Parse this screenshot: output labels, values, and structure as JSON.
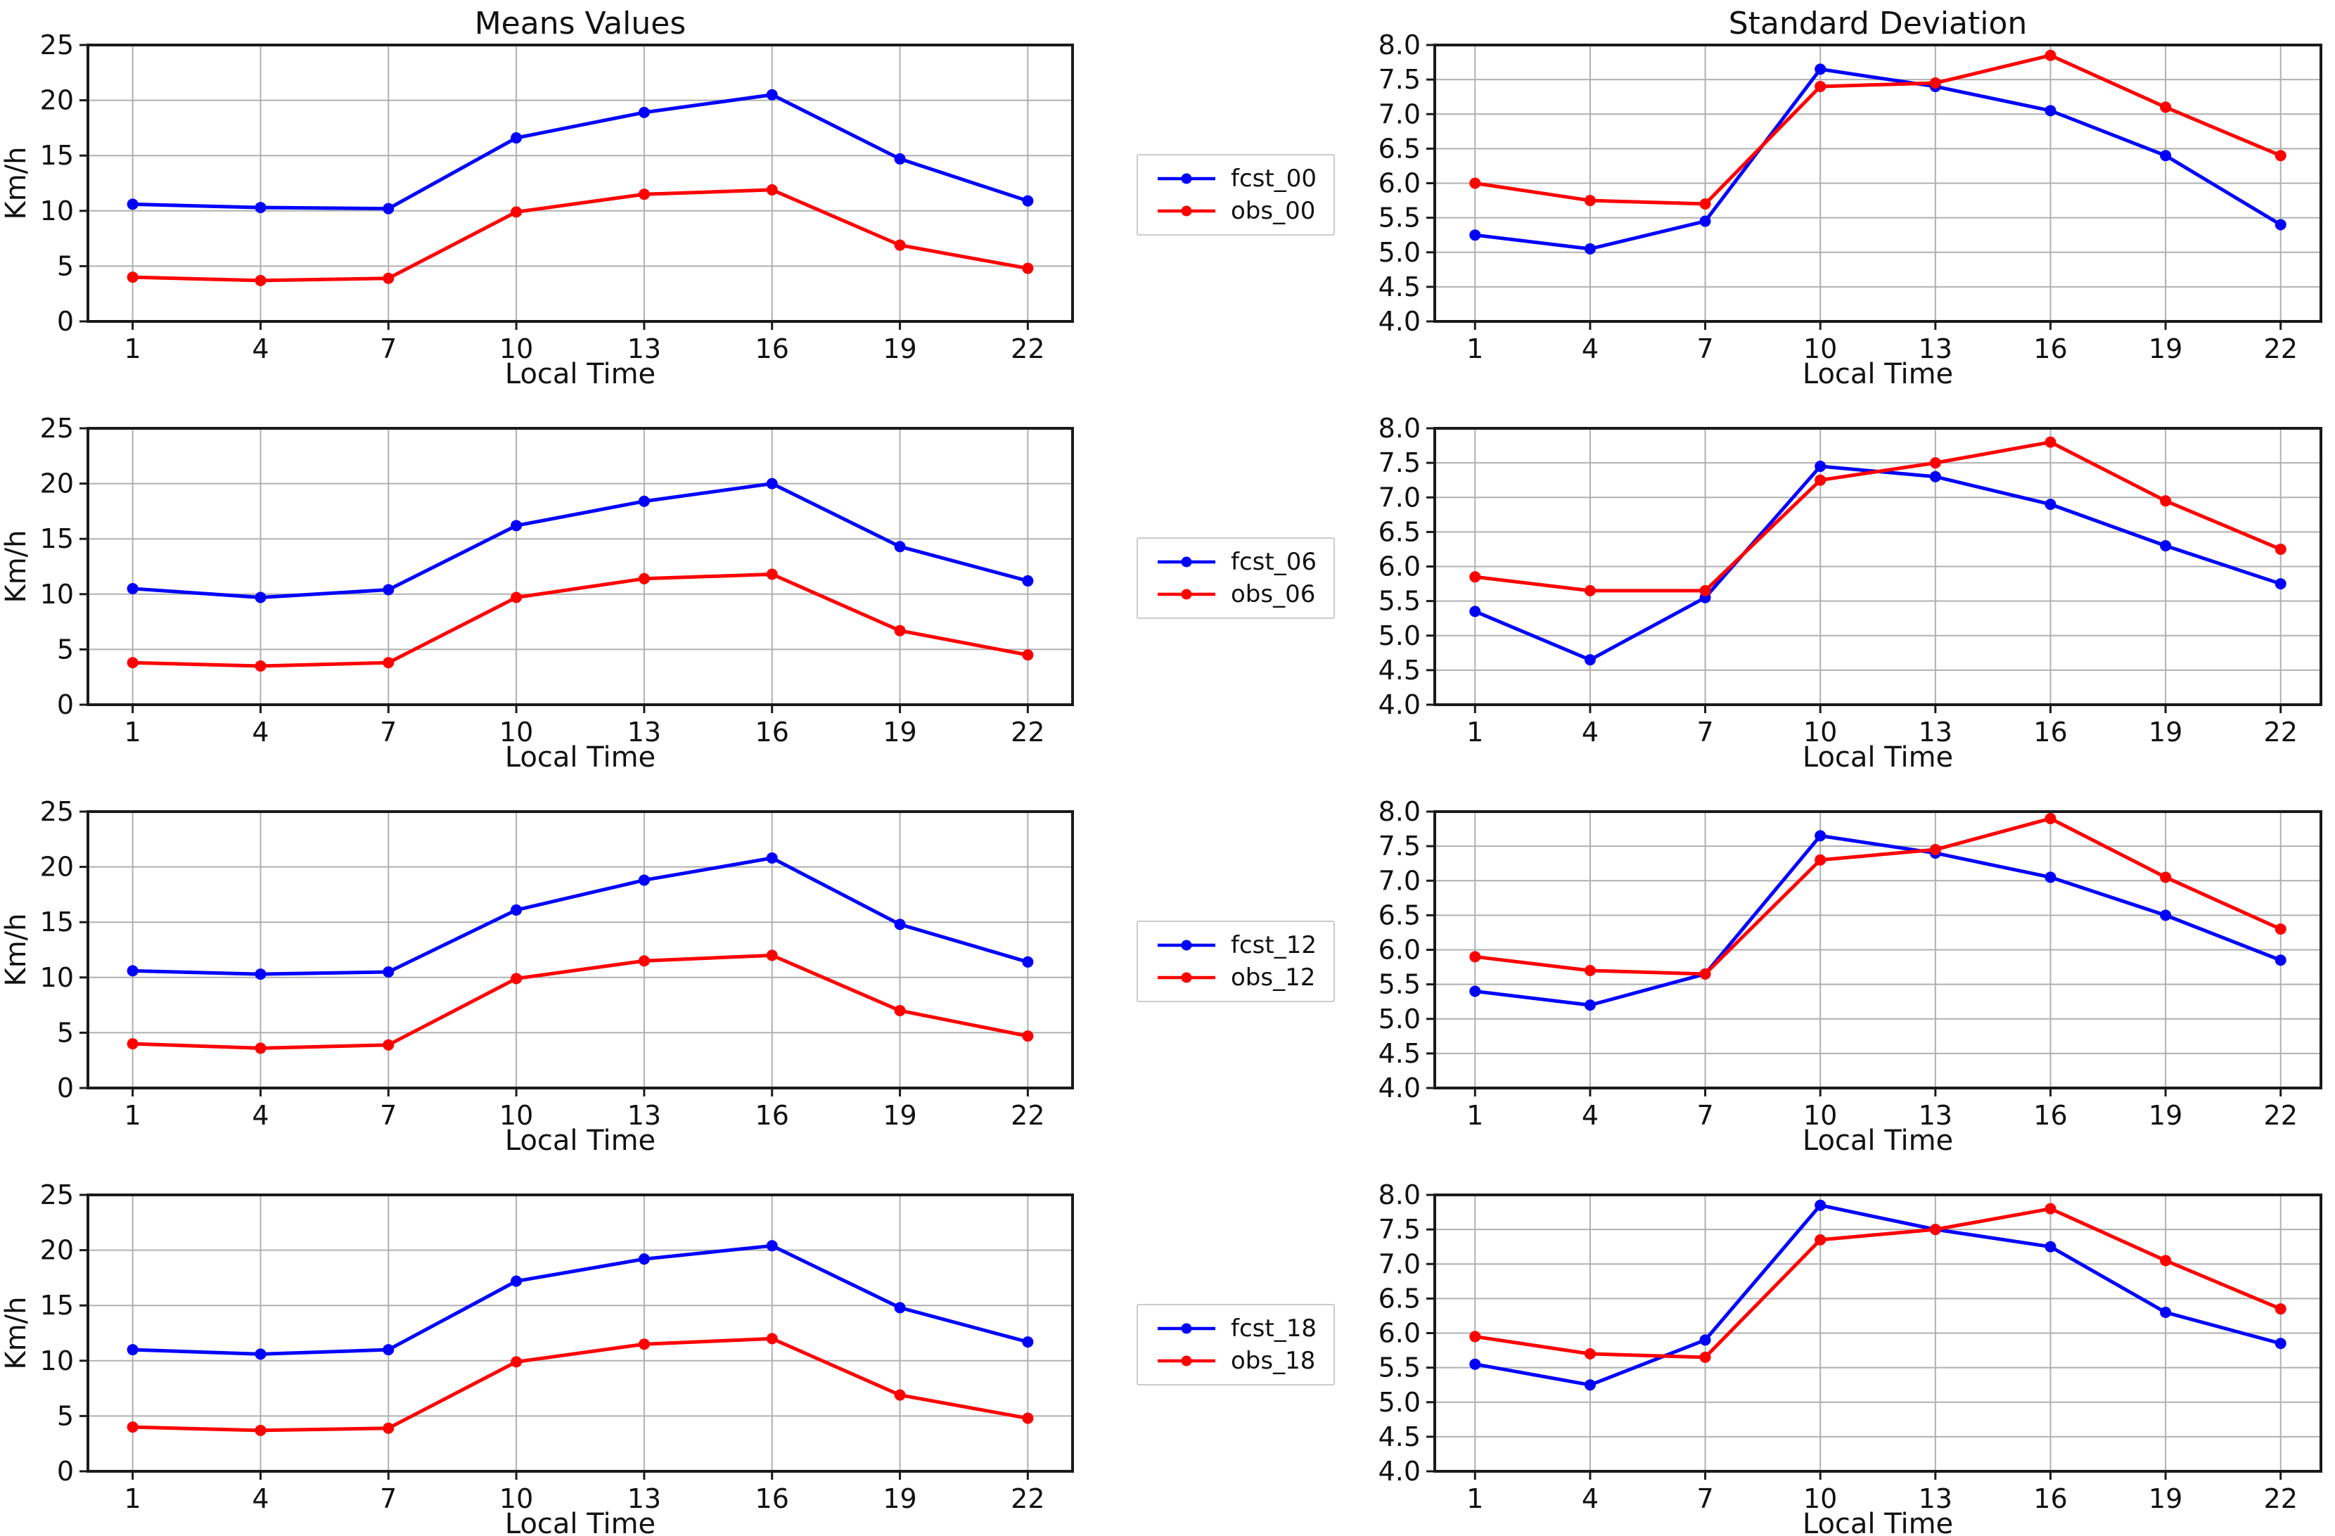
{
  "panels": {
    "means": {
      "title": "Means Values",
      "y_label": "Km/h",
      "ylim": [
        0,
        25
      ],
      "y_tick_values": [
        0,
        5,
        10,
        15,
        20,
        25
      ],
      "y_tick_labels": [
        "0",
        "5",
        "10",
        "15",
        "20",
        "25"
      ]
    },
    "std": {
      "title": "Standard Deviation",
      "y_label": null,
      "ylim": [
        4.0,
        8.0
      ],
      "y_tick_values": [
        4.0,
        4.5,
        5.0,
        5.5,
        6.0,
        6.5,
        7.0,
        7.5,
        8.0
      ],
      "y_tick_labels": [
        "4.0",
        "4.5",
        "5.0",
        "5.5",
        "6.0",
        "6.5",
        "7.0",
        "7.5",
        "8.0"
      ]
    }
  },
  "x_axis": {
    "label": "Local Time",
    "tick_values": [
      1,
      4,
      7,
      10,
      13,
      16,
      19,
      22
    ],
    "tick_labels": [
      "1",
      "4",
      "7",
      "10",
      "13",
      "16",
      "19",
      "22"
    ],
    "xlim": [
      -0.05,
      23.05
    ]
  },
  "colors": {
    "forecast": "#0000ff",
    "observation": "#ff0000",
    "grid": "#b0b0b0",
    "axis": "#1a1a1a",
    "text": "#111111",
    "legend_border": "#cccccc"
  },
  "legends": [
    {
      "entries": [
        {
          "label": "fcst_00",
          "color_key": "forecast"
        },
        {
          "label": "obs_00",
          "color_key": "observation"
        }
      ]
    },
    {
      "entries": [
        {
          "label": "fcst_06",
          "color_key": "forecast"
        },
        {
          "label": "obs_06",
          "color_key": "observation"
        }
      ]
    },
    {
      "entries": [
        {
          "label": "fcst_12",
          "color_key": "forecast"
        },
        {
          "label": "obs_12",
          "color_key": "observation"
        }
      ]
    },
    {
      "entries": [
        {
          "label": "fcst_18",
          "color_key": "forecast"
        },
        {
          "label": "obs_18",
          "color_key": "observation"
        }
      ]
    }
  ],
  "chart_data": [
    {
      "type": "line",
      "panel": "means",
      "row": "00",
      "show_title": true,
      "title": "Means Values",
      "xlabel": "Local Time",
      "ylabel": "Km/h",
      "ylim": [
        0,
        25
      ],
      "grid": true,
      "legend_position": "center-left-outside",
      "x": [
        1,
        4,
        7,
        10,
        13,
        16,
        19,
        22
      ],
      "series": [
        {
          "name": "fcst_00",
          "color_key": "forecast",
          "values": [
            10.6,
            10.3,
            10.2,
            16.6,
            18.9,
            20.5,
            14.7,
            10.9
          ]
        },
        {
          "name": "obs_00",
          "color_key": "observation",
          "values": [
            4.0,
            3.7,
            3.9,
            9.9,
            11.5,
            11.9,
            6.9,
            4.8
          ]
        }
      ]
    },
    {
      "type": "line",
      "panel": "std",
      "row": "00",
      "show_title": true,
      "title": "Standard Deviation",
      "xlabel": "Local Time",
      "ylabel": null,
      "ylim": [
        4.0,
        8.0
      ],
      "grid": true,
      "legend_position": "center-left-outside",
      "x": [
        1,
        4,
        7,
        10,
        13,
        16,
        19,
        22
      ],
      "series": [
        {
          "name": "fcst_00",
          "color_key": "forecast",
          "values": [
            5.25,
            5.05,
            5.45,
            7.65,
            7.4,
            7.05,
            6.4,
            5.4
          ]
        },
        {
          "name": "obs_00",
          "color_key": "observation",
          "values": [
            6.0,
            5.75,
            5.7,
            7.4,
            7.45,
            7.85,
            7.1,
            6.4
          ]
        }
      ]
    },
    {
      "type": "line",
      "panel": "means",
      "row": "06",
      "show_title": false,
      "title": "",
      "xlabel": "Local Time",
      "ylabel": "Km/h",
      "ylim": [
        0,
        25
      ],
      "grid": true,
      "legend_position": "center-left-outside",
      "x": [
        1,
        4,
        7,
        10,
        13,
        16,
        19,
        22
      ],
      "series": [
        {
          "name": "fcst_06",
          "color_key": "forecast",
          "values": [
            10.5,
            9.7,
            10.4,
            16.2,
            18.4,
            20.0,
            14.3,
            11.2
          ]
        },
        {
          "name": "obs_06",
          "color_key": "observation",
          "values": [
            3.8,
            3.5,
            3.8,
            9.7,
            11.4,
            11.8,
            6.7,
            4.5
          ]
        }
      ]
    },
    {
      "type": "line",
      "panel": "std",
      "row": "06",
      "show_title": false,
      "title": "",
      "xlabel": "Local Time",
      "ylabel": null,
      "ylim": [
        4.0,
        8.0
      ],
      "grid": true,
      "legend_position": "center-left-outside",
      "x": [
        1,
        4,
        7,
        10,
        13,
        16,
        19,
        22
      ],
      "series": [
        {
          "name": "fcst_06",
          "color_key": "forecast",
          "values": [
            5.35,
            4.65,
            5.55,
            7.45,
            7.3,
            6.9,
            6.3,
            5.75
          ]
        },
        {
          "name": "obs_06",
          "color_key": "observation",
          "values": [
            5.85,
            5.65,
            5.65,
            7.25,
            7.5,
            7.8,
            6.95,
            6.25
          ]
        }
      ]
    },
    {
      "type": "line",
      "panel": "means",
      "row": "12",
      "show_title": false,
      "title": "",
      "xlabel": "Local Time",
      "ylabel": "Km/h",
      "ylim": [
        0,
        25
      ],
      "grid": true,
      "legend_position": "center-left-outside",
      "x": [
        1,
        4,
        7,
        10,
        13,
        16,
        19,
        22
      ],
      "series": [
        {
          "name": "fcst_12",
          "color_key": "forecast",
          "values": [
            10.6,
            10.3,
            10.5,
            16.1,
            18.8,
            20.8,
            14.8,
            11.4
          ]
        },
        {
          "name": "obs_12",
          "color_key": "observation",
          "values": [
            4.0,
            3.6,
            3.9,
            9.9,
            11.5,
            12.0,
            7.0,
            4.7
          ]
        }
      ]
    },
    {
      "type": "line",
      "panel": "std",
      "row": "12",
      "show_title": false,
      "title": "",
      "xlabel": "Local Time",
      "ylabel": null,
      "ylim": [
        4.0,
        8.0
      ],
      "grid": true,
      "legend_position": "center-left-outside",
      "x": [
        1,
        4,
        7,
        10,
        13,
        16,
        19,
        22
      ],
      "series": [
        {
          "name": "fcst_12",
          "color_key": "forecast",
          "values": [
            5.4,
            5.2,
            5.65,
            7.65,
            7.4,
            7.05,
            6.5,
            5.85
          ]
        },
        {
          "name": "obs_12",
          "color_key": "observation",
          "values": [
            5.9,
            5.7,
            5.65,
            7.3,
            7.45,
            7.9,
            7.05,
            6.3
          ]
        }
      ]
    },
    {
      "type": "line",
      "panel": "means",
      "row": "18",
      "show_title": false,
      "title": "",
      "xlabel": "Local Time",
      "ylabel": "Km/h",
      "ylim": [
        0,
        25
      ],
      "grid": true,
      "legend_position": "center-left-outside",
      "x": [
        1,
        4,
        7,
        10,
        13,
        16,
        19,
        22
      ],
      "series": [
        {
          "name": "fcst_18",
          "color_key": "forecast",
          "values": [
            11.0,
            10.6,
            11.0,
            17.2,
            19.2,
            20.4,
            14.8,
            11.7
          ]
        },
        {
          "name": "obs_18",
          "color_key": "observation",
          "values": [
            4.0,
            3.7,
            3.9,
            9.9,
            11.5,
            12.0,
            6.9,
            4.8
          ]
        }
      ]
    },
    {
      "type": "line",
      "panel": "std",
      "row": "18",
      "show_title": false,
      "title": "",
      "xlabel": "Local Time",
      "ylabel": null,
      "ylim": [
        4.0,
        8.0
      ],
      "grid": true,
      "legend_position": "center-left-outside",
      "x": [
        1,
        4,
        7,
        10,
        13,
        16,
        19,
        22
      ],
      "series": [
        {
          "name": "fcst_18",
          "color_key": "forecast",
          "values": [
            5.55,
            5.25,
            5.9,
            7.85,
            7.5,
            7.25,
            6.3,
            5.85
          ]
        },
        {
          "name": "obs_18",
          "color_key": "observation",
          "values": [
            5.95,
            5.7,
            5.65,
            7.35,
            7.5,
            7.8,
            7.05,
            6.35
          ]
        }
      ]
    }
  ]
}
